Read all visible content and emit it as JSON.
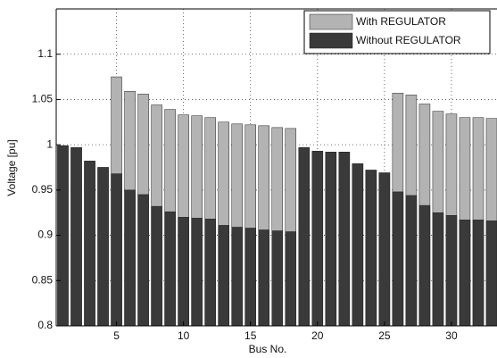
{
  "chart_data": {
    "type": "bar",
    "xlabel": "Bus No.",
    "ylabel": "Voltage [pu]",
    "x": [
      1,
      2,
      3,
      4,
      5,
      6,
      7,
      8,
      9,
      10,
      11,
      12,
      13,
      14,
      15,
      16,
      17,
      18,
      19,
      20,
      21,
      22,
      23,
      24,
      25,
      26,
      27,
      28,
      29,
      30,
      31,
      32,
      33
    ],
    "series": [
      {
        "name": "With REGULATOR",
        "color": "#b3b3b3",
        "values": [
          0.999,
          0.997,
          0.982,
          0.975,
          1.075,
          1.059,
          1.056,
          1.044,
          1.039,
          1.033,
          1.032,
          1.03,
          1.025,
          1.023,
          1.022,
          1.021,
          1.019,
          1.018,
          0.997,
          0.993,
          0.992,
          0.992,
          0.979,
          0.972,
          0.969,
          1.057,
          1.055,
          1.045,
          1.037,
          1.034,
          1.03,
          1.03,
          1.029
        ]
      },
      {
        "name": "Without REGULATOR",
        "color": "#3a3a3a",
        "values": [
          0.999,
          0.997,
          0.982,
          0.975,
          0.968,
          0.95,
          0.945,
          0.932,
          0.926,
          0.92,
          0.919,
          0.918,
          0.911,
          0.909,
          0.908,
          0.906,
          0.905,
          0.904,
          0.997,
          0.993,
          0.992,
          0.992,
          0.979,
          0.972,
          0.969,
          0.948,
          0.944,
          0.933,
          0.925,
          0.922,
          0.917,
          0.917,
          0.916
        ]
      }
    ],
    "xlim": [
      0.5,
      33.4
    ],
    "xticks": [
      5,
      10,
      15,
      20,
      25,
      30
    ],
    "ylim": [
      0.8,
      1.15
    ],
    "yticks": [
      0.8,
      0.85,
      0.9,
      0.95,
      1,
      1.05,
      1.1
    ],
    "grid": true,
    "legend": "top-right"
  }
}
